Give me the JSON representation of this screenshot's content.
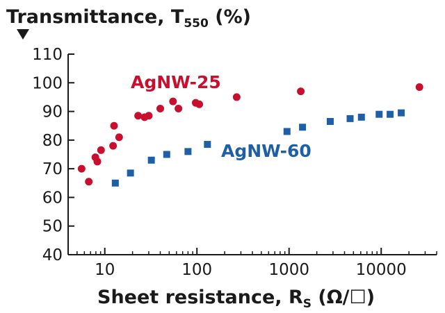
{
  "chart_data": {
    "type": "scatter",
    "title": {
      "main": "Transmittance, T",
      "subscript": "550",
      "unit": " (%)"
    },
    "xlabel": {
      "main": "Sheet resistance, R",
      "subscript": "S",
      "unit": " (Ω/☐)"
    },
    "x_scale": "log",
    "xlim": [
      4,
      40000
    ],
    "ylim": [
      40,
      110
    ],
    "x_ticks": [
      10,
      100,
      1000,
      10000
    ],
    "x_tick_labels": [
      "10",
      "100",
      "1000",
      "10000"
    ],
    "y_ticks": [
      40,
      50,
      60,
      70,
      80,
      90,
      100,
      110
    ],
    "y_tick_labels": [
      "40",
      "50",
      "60",
      "70",
      "80",
      "90",
      "100",
      "110"
    ],
    "grid": false,
    "series": [
      {
        "name": "AgNW-25",
        "marker": "circle",
        "color": "#c8102e",
        "points": [
          [
            5.6,
            70
          ],
          [
            6.7,
            65.5
          ],
          [
            7.9,
            74
          ],
          [
            8.3,
            72.5
          ],
          [
            9.1,
            76.5
          ],
          [
            12.3,
            78
          ],
          [
            12.6,
            85
          ],
          [
            14.3,
            81
          ],
          [
            23,
            88.5
          ],
          [
            27,
            88
          ],
          [
            30,
            88.5
          ],
          [
            40,
            91
          ],
          [
            55,
            93.5
          ],
          [
            63,
            91
          ],
          [
            97,
            93
          ],
          [
            106,
            92.5
          ],
          [
            270,
            95
          ],
          [
            1340,
            97
          ],
          [
            26000,
            98.5
          ]
        ]
      },
      {
        "name": "AgNW-60",
        "marker": "square",
        "color": "#1f5fa6",
        "points": [
          [
            13,
            65
          ],
          [
            19,
            68.5
          ],
          [
            32,
            73
          ],
          [
            47,
            75
          ],
          [
            80,
            76
          ],
          [
            130,
            78.5
          ],
          [
            950,
            83
          ],
          [
            1400,
            84.5
          ],
          [
            2800,
            86.5
          ],
          [
            4600,
            87.5
          ],
          [
            6100,
            88
          ],
          [
            9500,
            89
          ],
          [
            12500,
            89
          ],
          [
            16500,
            89.5
          ]
        ]
      }
    ]
  }
}
